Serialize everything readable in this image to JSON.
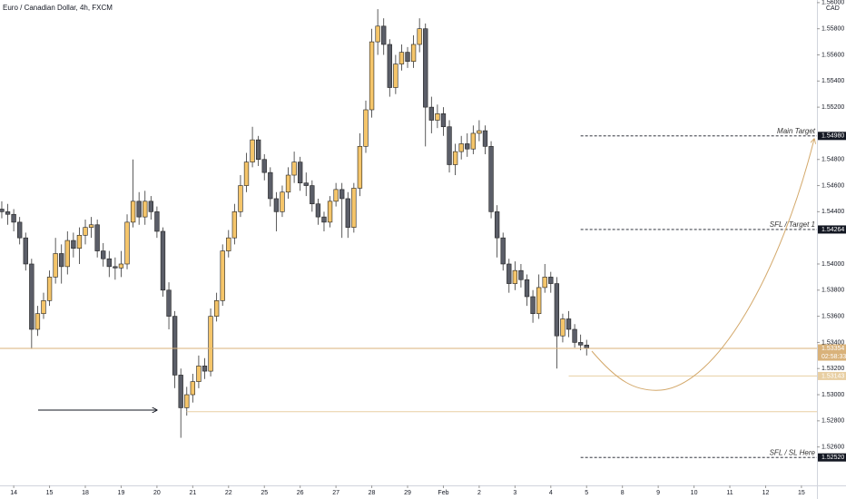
{
  "chart_data": {
    "type": "candlestick",
    "title": "Euro / Canadian Dollar, 4h, FXCM",
    "currency": "CAD",
    "up_color": "#f5c56a",
    "down_color": "#5b5e68",
    "grid": false,
    "ylim": [
      1.52306,
      1.5602
    ],
    "yticks": [
      {
        "value": 1.56,
        "label": "1.56000"
      },
      {
        "value": 1.558,
        "label": "1.55800"
      },
      {
        "value": 1.556,
        "label": "1.55600"
      },
      {
        "value": 1.554,
        "label": "1.55400"
      },
      {
        "value": 1.552,
        "label": "1.55200"
      },
      {
        "value": 1.548,
        "label": "1.54800"
      },
      {
        "value": 1.546,
        "label": "1.54600"
      },
      {
        "value": 1.544,
        "label": "1.54400"
      },
      {
        "value": 1.54,
        "label": "1.54000"
      },
      {
        "value": 1.538,
        "label": "1.53800"
      },
      {
        "value": 1.536,
        "label": "1.53600"
      },
      {
        "value": 1.534,
        "label": "1.53400"
      },
      {
        "value": 1.532,
        "label": "1.53200"
      },
      {
        "value": 1.53,
        "label": "1.53000"
      },
      {
        "value": 1.528,
        "label": "1.52800"
      },
      {
        "value": 1.526,
        "label": "1.52600"
      }
    ],
    "xlim": [
      -0.3,
      136.6
    ],
    "xticks": [
      {
        "value": 2,
        "label": "14"
      },
      {
        "value": 8,
        "label": "15"
      },
      {
        "value": 14,
        "label": "18"
      },
      {
        "value": 20,
        "label": "19"
      },
      {
        "value": 26,
        "label": "20"
      },
      {
        "value": 32,
        "label": "21"
      },
      {
        "value": 38,
        "label": "22"
      },
      {
        "value": 44,
        "label": "25"
      },
      {
        "value": 50,
        "label": "26"
      },
      {
        "value": 56,
        "label": "27"
      },
      {
        "value": 62,
        "label": "28"
      },
      {
        "value": 68,
        "label": "29"
      },
      {
        "value": 74,
        "label": "Feb"
      },
      {
        "value": 80,
        "label": "2"
      },
      {
        "value": 86,
        "label": "3"
      },
      {
        "value": 92,
        "label": "4"
      },
      {
        "value": 98,
        "label": "5"
      },
      {
        "value": 104,
        "label": "8"
      },
      {
        "value": 110,
        "label": "9"
      },
      {
        "value": 116,
        "label": "10"
      },
      {
        "value": 122,
        "label": "11"
      },
      {
        "value": 128,
        "label": "12"
      },
      {
        "value": 134,
        "label": "15"
      }
    ],
    "candles": [
      [
        1.5442,
        1.5448,
        1.5435,
        1.544
      ],
      [
        1.544,
        1.5446,
        1.543,
        1.5438
      ],
      [
        1.5438,
        1.5442,
        1.5425,
        1.5432
      ],
      [
        1.5432,
        1.5436,
        1.5415,
        1.542
      ],
      [
        1.542,
        1.5424,
        1.5395,
        1.54
      ],
      [
        1.54,
        1.5404,
        1.5335,
        1.535
      ],
      [
        1.535,
        1.5368,
        1.5345,
        1.5362
      ],
      [
        1.5362,
        1.5378,
        1.5358,
        1.5372
      ],
      [
        1.5372,
        1.5395,
        1.5368,
        1.539
      ],
      [
        1.539,
        1.542,
        1.5385,
        1.5408
      ],
      [
        1.5408,
        1.5415,
        1.5385,
        1.5398
      ],
      [
        1.5398,
        1.5425,
        1.5392,
        1.5418
      ],
      [
        1.5418,
        1.5424,
        1.5405,
        1.5412
      ],
      [
        1.5412,
        1.5428,
        1.54,
        1.5422
      ],
      [
        1.5422,
        1.5434,
        1.5415,
        1.5428
      ],
      [
        1.5428,
        1.5436,
        1.542,
        1.543
      ],
      [
        1.543,
        1.5434,
        1.5405,
        1.541
      ],
      [
        1.541,
        1.5416,
        1.5398,
        1.5404
      ],
      [
        1.5404,
        1.541,
        1.539,
        1.5398
      ],
      [
        1.5398,
        1.5405,
        1.5388,
        1.5397
      ],
      [
        1.5397,
        1.541,
        1.539,
        1.54
      ],
      [
        1.54,
        1.5438,
        1.5396,
        1.5432
      ],
      [
        1.5432,
        1.548,
        1.5428,
        1.5448
      ],
      [
        1.5448,
        1.5455,
        1.543,
        1.5436
      ],
      [
        1.5436,
        1.5456,
        1.543,
        1.5448
      ],
      [
        1.5448,
        1.5452,
        1.5434,
        1.544
      ],
      [
        1.544,
        1.5444,
        1.542,
        1.5425
      ],
      [
        1.5425,
        1.5428,
        1.5375,
        1.538
      ],
      [
        1.538,
        1.5386,
        1.535,
        1.536
      ],
      [
        1.536,
        1.5364,
        1.5305,
        1.5315
      ],
      [
        1.5315,
        1.532,
        1.5267,
        1.529
      ],
      [
        1.529,
        1.5306,
        1.5284,
        1.53
      ],
      [
        1.53,
        1.5316,
        1.5294,
        1.531
      ],
      [
        1.531,
        1.533,
        1.5305,
        1.5322
      ],
      [
        1.5322,
        1.5328,
        1.5312,
        1.5318
      ],
      [
        1.5318,
        1.5366,
        1.5314,
        1.536
      ],
      [
        1.536,
        1.5378,
        1.5356,
        1.5372
      ],
      [
        1.5372,
        1.5415,
        1.5368,
        1.541
      ],
      [
        1.541,
        1.5426,
        1.5405,
        1.542
      ],
      [
        1.542,
        1.5446,
        1.5415,
        1.544
      ],
      [
        1.544,
        1.5468,
        1.5436,
        1.546
      ],
      [
        1.546,
        1.5485,
        1.5455,
        1.5478
      ],
      [
        1.5478,
        1.5505,
        1.5474,
        1.5495
      ],
      [
        1.5495,
        1.5498,
        1.5475,
        1.548
      ],
      [
        1.548,
        1.5484,
        1.5464,
        1.547
      ],
      [
        1.547,
        1.5474,
        1.5444,
        1.545
      ],
      [
        1.545,
        1.5455,
        1.5425,
        1.544
      ],
      [
        1.544,
        1.546,
        1.5436,
        1.5455
      ],
      [
        1.5455,
        1.5474,
        1.545,
        1.5468
      ],
      [
        1.5468,
        1.5486,
        1.5462,
        1.5478
      ],
      [
        1.5478,
        1.5482,
        1.5456,
        1.5462
      ],
      [
        1.5462,
        1.547,
        1.5452,
        1.546
      ],
      [
        1.546,
        1.5464,
        1.544,
        1.5446
      ],
      [
        1.5446,
        1.545,
        1.543,
        1.5436
      ],
      [
        1.5436,
        1.544,
        1.5425,
        1.5432
      ],
      [
        1.5432,
        1.5452,
        1.5428,
        1.5448
      ],
      [
        1.5448,
        1.5462,
        1.5444,
        1.5457
      ],
      [
        1.5457,
        1.5462,
        1.542,
        1.545
      ],
      [
        1.545,
        1.5455,
        1.542,
        1.5428
      ],
      [
        1.5428,
        1.5462,
        1.5424,
        1.5458
      ],
      [
        1.5458,
        1.55,
        1.5452,
        1.549
      ],
      [
        1.549,
        1.5525,
        1.5485,
        1.5518
      ],
      [
        1.5518,
        1.558,
        1.5512,
        1.557
      ],
      [
        1.557,
        1.5595,
        1.556,
        1.5582
      ],
      [
        1.5582,
        1.5588,
        1.556,
        1.5568
      ],
      [
        1.5568,
        1.5572,
        1.5528,
        1.5535
      ],
      [
        1.5535,
        1.556,
        1.553,
        1.5553
      ],
      [
        1.5553,
        1.5568,
        1.5548,
        1.5562
      ],
      [
        1.5562,
        1.5566,
        1.555,
        1.5555
      ],
      [
        1.5555,
        1.5575,
        1.555,
        1.5568
      ],
      [
        1.5568,
        1.5588,
        1.5562,
        1.558
      ],
      [
        1.558,
        1.5584,
        1.549,
        1.552
      ],
      [
        1.552,
        1.5528,
        1.55,
        1.551
      ],
      [
        1.551,
        1.5522,
        1.5504,
        1.5515
      ],
      [
        1.5515,
        1.552,
        1.5498,
        1.5505
      ],
      [
        1.5505,
        1.551,
        1.547,
        1.5476
      ],
      [
        1.5476,
        1.5492,
        1.5468,
        1.5486
      ],
      [
        1.5486,
        1.5498,
        1.548,
        1.5492
      ],
      [
        1.5492,
        1.55,
        1.5482,
        1.5488
      ],
      [
        1.5488,
        1.5506,
        1.5484,
        1.55
      ],
      [
        1.55,
        1.551,
        1.5494,
        1.5502
      ],
      [
        1.5502,
        1.5506,
        1.5484,
        1.549
      ],
      [
        1.549,
        1.5494,
        1.5435,
        1.544
      ],
      [
        1.544,
        1.5445,
        1.5405,
        1.542
      ],
      [
        1.542,
        1.5424,
        1.5395,
        1.54
      ],
      [
        1.54,
        1.5404,
        1.5378,
        1.5385
      ],
      [
        1.5385,
        1.5402,
        1.538,
        1.5395
      ],
      [
        1.5395,
        1.54,
        1.5382,
        1.5388
      ],
      [
        1.5388,
        1.5392,
        1.5368,
        1.5375
      ],
      [
        1.5375,
        1.538,
        1.5355,
        1.5362
      ],
      [
        1.5362,
        1.5392,
        1.5358,
        1.5382
      ],
      [
        1.5382,
        1.54,
        1.5378,
        1.539
      ],
      [
        1.539,
        1.5394,
        1.5378,
        1.5385
      ],
      [
        1.5385,
        1.539,
        1.532,
        1.5345
      ],
      [
        1.5345,
        1.5362,
        1.534,
        1.5358
      ],
      [
        1.5358,
        1.5364,
        1.5344,
        1.535
      ],
      [
        1.535,
        1.5354,
        1.5336,
        1.534
      ],
      [
        1.534,
        1.5346,
        1.5334,
        1.5338
      ],
      [
        1.5338,
        1.5342,
        1.533,
        1.53354
      ]
    ],
    "levels": [
      {
        "name": "Main Target",
        "price": {
          "value": 1.5498,
          "label": "1.54980"
        },
        "style": "dashed",
        "color": "#131722",
        "from": 97
      },
      {
        "name": "SFL / Target 1",
        "price": {
          "value": 1.54264,
          "label": "1.54264"
        },
        "style": "dashed",
        "color": "#131722",
        "from": 97
      },
      {
        "price": {
          "value": 1.53354,
          "label": "1.53354"
        },
        "countdown": "02:58:33",
        "style": "solid",
        "color": "#d9b27a",
        "from": -0.3
      },
      {
        "price": {
          "value": 1.53143,
          "label": "1.53143"
        },
        "style": "solid",
        "color": "#e8cfa3",
        "from": 95
      },
      {
        "price": {
          "value": 1.5287
        },
        "style": "solid",
        "color": "#e8cfa3",
        "from": 31
      },
      {
        "name": "SFL / SL Here",
        "price": {
          "value": 1.5252,
          "label": "1.52520"
        },
        "style": "dashed",
        "color": "#131722",
        "from": 97
      }
    ]
  }
}
